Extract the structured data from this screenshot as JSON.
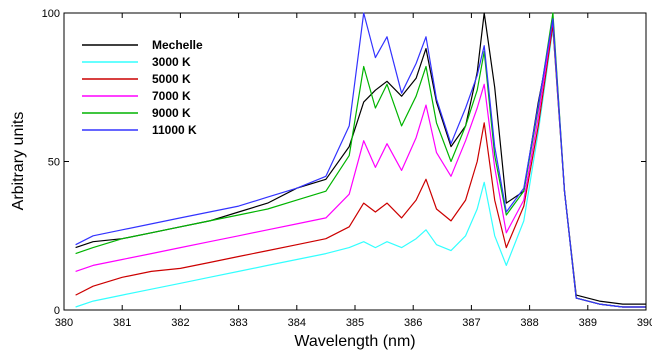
{
  "chart_data": {
    "type": "line",
    "xlabel": "Wavelength (nm)",
    "ylabel": "Arbitrary units",
    "xlim": [
      380,
      390
    ],
    "ylim": [
      0,
      100
    ],
    "xticks": [
      380,
      381,
      382,
      383,
      384,
      385,
      386,
      387,
      388,
      389,
      390
    ],
    "yticks": [
      0,
      50,
      100
    ],
    "grid": false,
    "legend_position": "top-left",
    "x": [
      380.2,
      380.5,
      381,
      381.5,
      382,
      382.5,
      383,
      383.5,
      384,
      384.5,
      384.9,
      385.15,
      385.35,
      385.55,
      385.8,
      386.05,
      386.22,
      386.4,
      386.65,
      386.9,
      387.1,
      387.22,
      387.4,
      387.6,
      387.9,
      388.15,
      388.4,
      388.6,
      388.8,
      389.2,
      389.6,
      390
    ],
    "series": [
      {
        "name": "Mechelle",
        "color": "#000000",
        "values": [
          21,
          23,
          24,
          26,
          28,
          30,
          33,
          36,
          41,
          44,
          55,
          70,
          74,
          77,
          72,
          78,
          88,
          70,
          55,
          62,
          80,
          100,
          75,
          36,
          40,
          70,
          95,
          40,
          5,
          3,
          2,
          2
        ]
      },
      {
        "name": "3000 K",
        "color": "#33ffff",
        "values": [
          1,
          3,
          5,
          7,
          9,
          11,
          13,
          15,
          17,
          19,
          21,
          23,
          21,
          23,
          21,
          24,
          27,
          22,
          20,
          25,
          34,
          43,
          25,
          15,
          30,
          60,
          95,
          40,
          4,
          2,
          1,
          1
        ]
      },
      {
        "name": "5000 K",
        "color": "#cc0000",
        "values": [
          5,
          8,
          11,
          13,
          14,
          16,
          18,
          20,
          22,
          24,
          28,
          36,
          33,
          36,
          31,
          37,
          44,
          34,
          30,
          37,
          50,
          63,
          37,
          21,
          35,
          62,
          96,
          40,
          4,
          2,
          1,
          1
        ]
      },
      {
        "name": "7000 K",
        "color": "#ff00ff",
        "values": [
          13,
          15,
          17,
          19,
          21,
          23,
          25,
          27,
          29,
          31,
          39,
          57,
          48,
          56,
          47,
          58,
          69,
          53,
          45,
          57,
          68,
          76,
          48,
          26,
          37,
          65,
          98,
          40,
          4,
          2,
          1,
          1
        ]
      },
      {
        "name": "9000 K",
        "color": "#00b400",
        "values": [
          19,
          21,
          24,
          26,
          28,
          30,
          32,
          34,
          37,
          40,
          52,
          82,
          68,
          76,
          62,
          72,
          82,
          63,
          50,
          62,
          74,
          87,
          52,
          32,
          40,
          68,
          100,
          40,
          4,
          2,
          1,
          1
        ]
      },
      {
        "name": "11000 K",
        "color": "#3333ff",
        "values": [
          22,
          25,
          27,
          29,
          31,
          33,
          35,
          38,
          41,
          45,
          62,
          100,
          85,
          92,
          73,
          83,
          92,
          71,
          56,
          68,
          79,
          89,
          55,
          33,
          41,
          69,
          98,
          40,
          4,
          2,
          1,
          1
        ]
      }
    ]
  }
}
